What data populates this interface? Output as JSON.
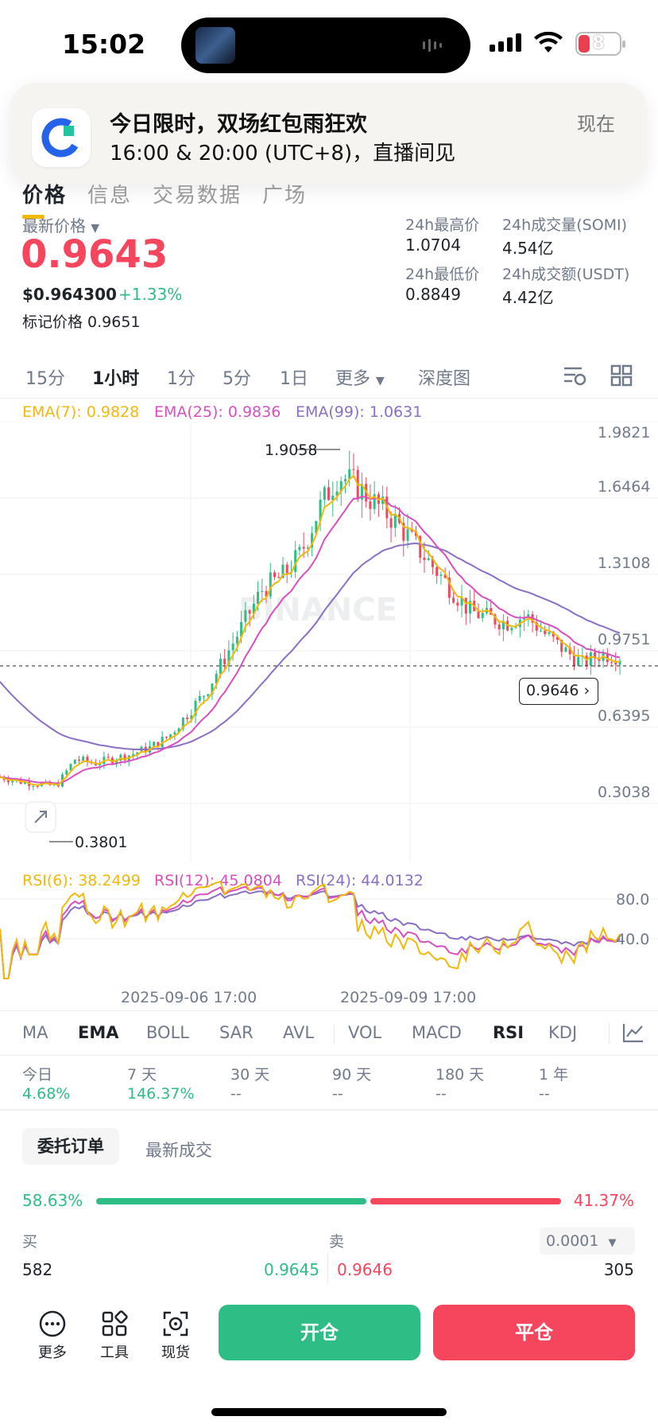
{
  "status": {
    "time": "15:02",
    "battery": "8"
  },
  "notification": {
    "title": "今日限时，双场红包雨狂欢",
    "body": "16:00 & 20:00 (UTC+8)，直播间见",
    "time": "现在"
  },
  "tabs": [
    "价格",
    "信息",
    "交易数据",
    "广场"
  ],
  "price": {
    "label": "最新价格",
    "last": "0.9643",
    "usd": "$0.964300",
    "change": "+1.33%",
    "mark": "标记价格 0.9651"
  },
  "stats": {
    "high_label": "24h最高价",
    "high": "1.0704",
    "vol_label": "24h成交量(SOMI)",
    "vol": "4.54亿",
    "low_label": "24h最低价",
    "low": "0.8849",
    "amt_label": "24h成交额(USDT)",
    "amt": "4.42亿"
  },
  "timeframes": [
    "15分",
    "1小时",
    "1分",
    "5分",
    "1日",
    "更多",
    "深度图"
  ],
  "ema": {
    "e7": "EMA(7): 0.9828",
    "e25": "EMA(25): 0.9836",
    "e99": "EMA(99): 1.0631"
  },
  "chart_data": {
    "type": "candlestick",
    "price_axis": [
      "1.9821",
      "1.6464",
      "1.3108",
      "0.9751",
      "0.6395",
      "0.3038"
    ],
    "ylim": [
      0.3038,
      1.9821
    ],
    "high_annotation": "1.9058",
    "low_annotation": "0.3801",
    "current_price_tag": "0.9646",
    "watermark": "BINANCE",
    "series": [
      {
        "name": "EMA(7)",
        "color": "#f0b90b"
      },
      {
        "name": "EMA(25)",
        "color": "#d84fc0"
      },
      {
        "name": "EMA(99)",
        "color": "#8a6fc4"
      }
    ],
    "close_path": [
      0.42,
      0.4,
      0.39,
      0.38,
      0.5,
      0.48,
      0.5,
      0.52,
      0.55,
      0.6,
      0.7,
      0.8,
      0.95,
      1.1,
      1.25,
      1.3,
      1.4,
      1.6,
      1.75,
      1.7,
      1.62,
      1.55,
      1.45,
      1.35,
      1.25,
      1.15,
      1.12,
      1.1,
      1.13,
      1.05,
      0.98,
      0.92,
      0.96,
      0.95
    ]
  },
  "rsi": {
    "r6": "RSI(6): 38.2499",
    "r12": "RSI(12): 45.0804",
    "r24": "RSI(24): 44.0132",
    "axis": [
      "80.0",
      "40.0"
    ],
    "dates": [
      "2025-09-06 17:00",
      "2025-09-09 17:00"
    ]
  },
  "indicators": [
    "MA",
    "EMA",
    "BOLL",
    "SAR",
    "AVL",
    "VOL",
    "MACD",
    "RSI",
    "KDJ"
  ],
  "performance": [
    {
      "label": "今日",
      "value": "4.68%"
    },
    {
      "label": "7 天",
      "value": "146.37%"
    },
    {
      "label": "30 天",
      "value": "--"
    },
    {
      "label": "90 天",
      "value": "--"
    },
    {
      "label": "180 天",
      "value": "--"
    },
    {
      "label": "1 年",
      "value": "--"
    }
  ],
  "orderbook": {
    "tab1": "委托订单",
    "tab2": "最新成交",
    "buy_pct": "58.63%",
    "sell_pct": "41.37%",
    "buy_label": "买",
    "sell_label": "卖",
    "precision": "0.0001",
    "buy_qty": "582",
    "buy_price": "0.9645",
    "sell_price": "0.9646",
    "sell_qty": "305"
  },
  "bottom": {
    "more": "更多",
    "tools": "工具",
    "spot": "现货",
    "open": "开仓",
    "close": "平仓"
  },
  "colors": {
    "up": "#2ebd85",
    "down": "#f6465d",
    "accent": "#f0b90b"
  }
}
